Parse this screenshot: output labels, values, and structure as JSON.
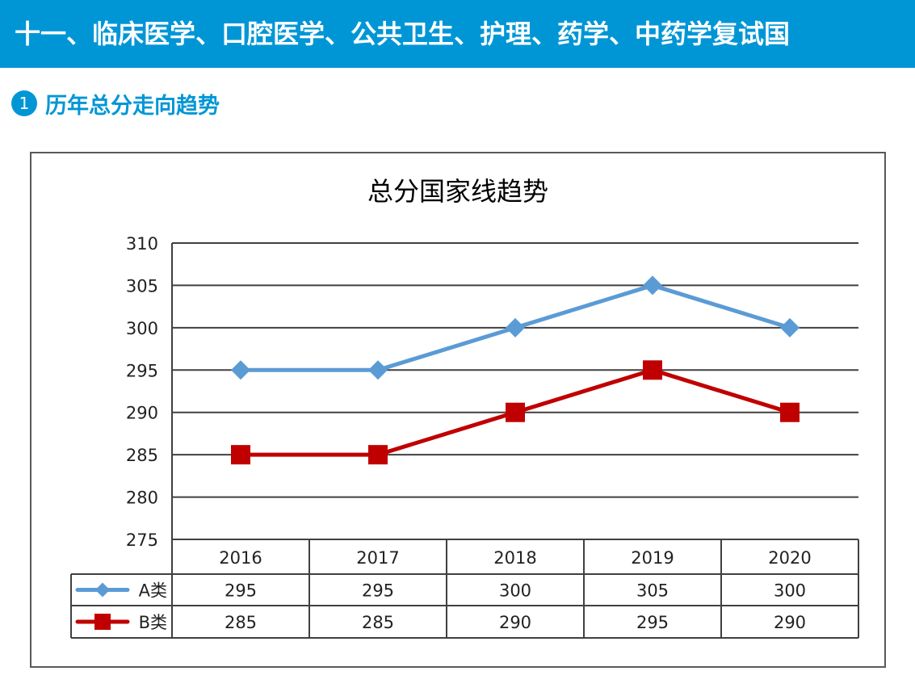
{
  "header": {
    "title": "十一、临床医学、口腔医学、公共卫生、护理、药学、中药学复试国"
  },
  "section": {
    "number": "1",
    "title": "历年总分走向趋势"
  },
  "chart_data": {
    "type": "line",
    "title": "总分国家线趋势",
    "categories": [
      "2016",
      "2017",
      "2018",
      "2019",
      "2020"
    ],
    "series": [
      {
        "name": "A类",
        "values": [
          295,
          295,
          300,
          305,
          300
        ],
        "color": "#5b9bd5",
        "marker": "diamond"
      },
      {
        "name": "B类",
        "values": [
          285,
          285,
          290,
          295,
          290
        ],
        "color": "#c00000",
        "marker": "square"
      }
    ],
    "ylim": [
      275,
      310
    ],
    "yticks": [
      "310",
      "305",
      "300",
      "295",
      "290",
      "285",
      "280",
      "275"
    ],
    "grid": true,
    "legend": "data-table-below"
  }
}
